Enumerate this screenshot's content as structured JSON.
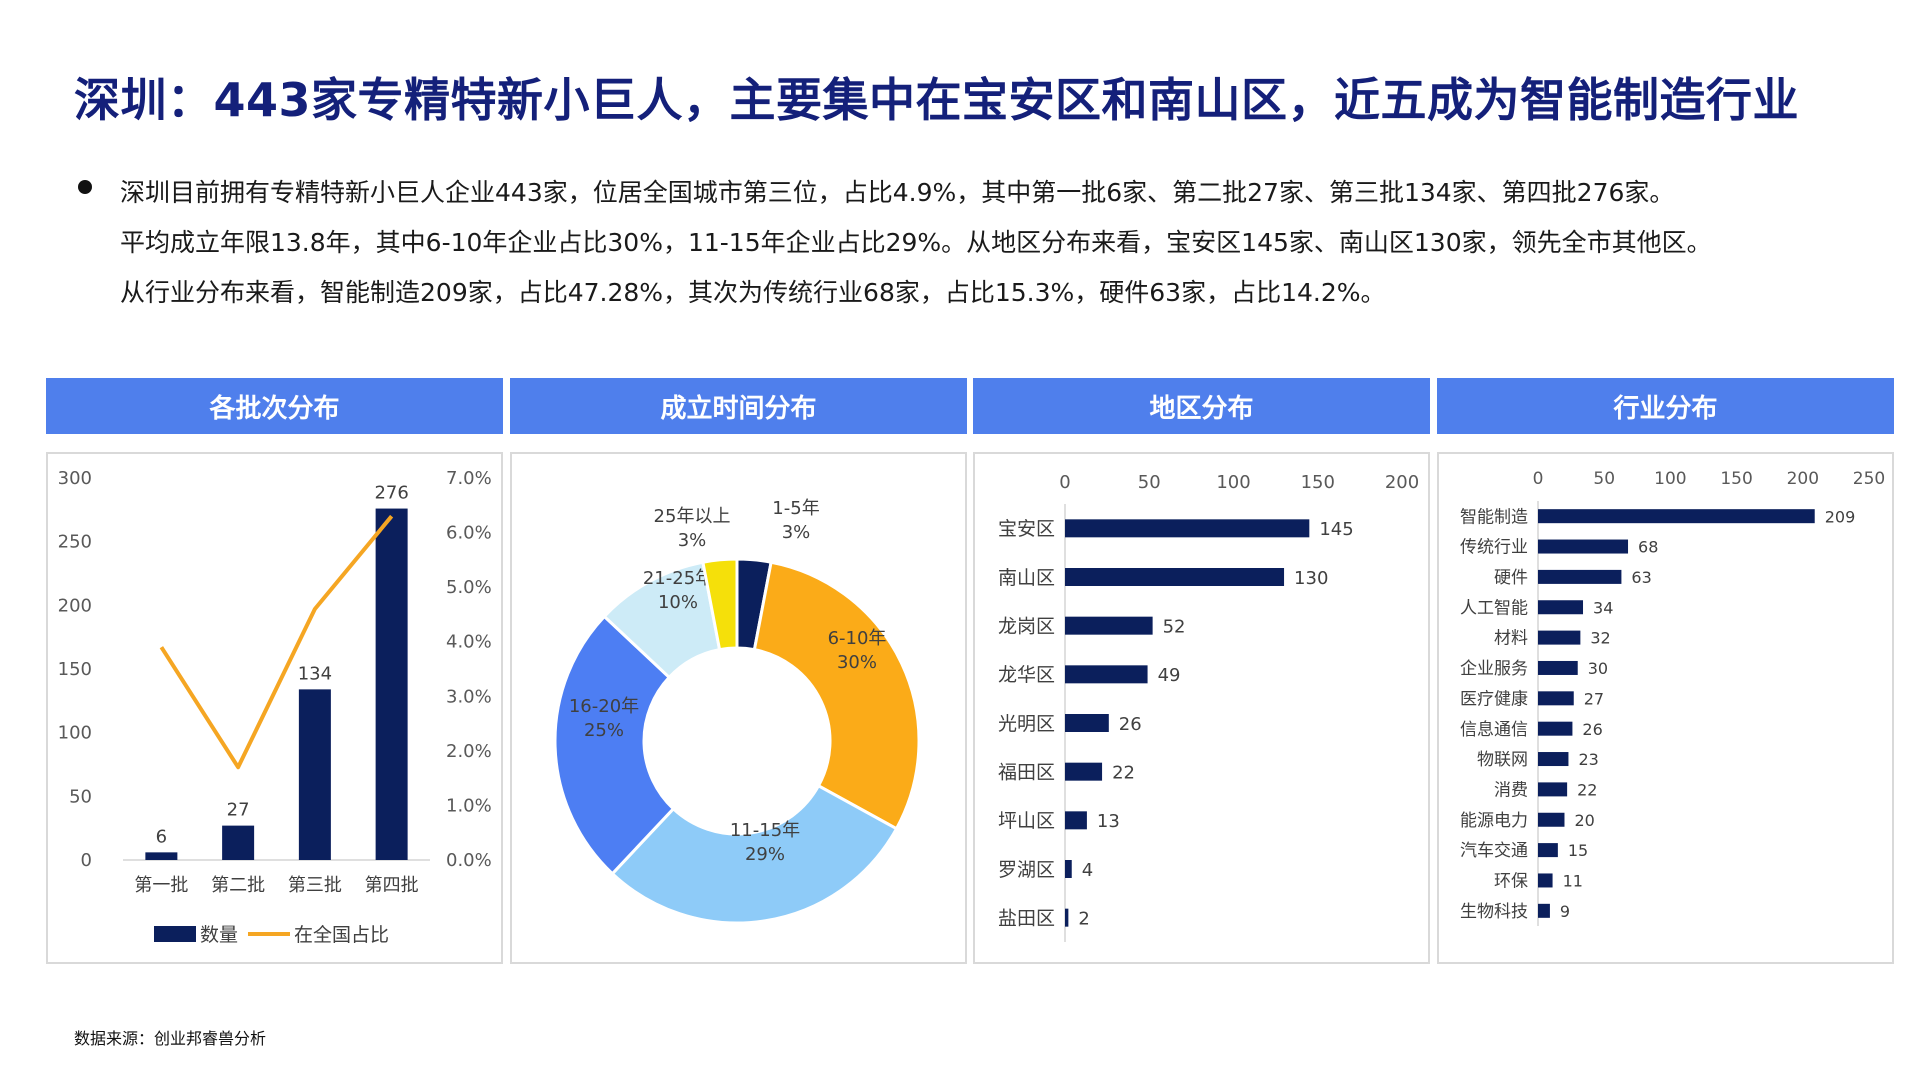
{
  "page": {
    "title": "深圳：443家专精特新小巨人，主要集中在宝安区和南山区，近五成为智能制造行业",
    "bullet_lines": [
      "深圳目前拥有专精特新小巨人企业443家，位居全国城市第三位，占比4.9%，其中第一批6家、第二批27家、第三批134家、第四批276家。",
      "平均成立年限13.8年，其中6-10年企业占比30%，11-15年企业占比29%。从地区分布来看，宝安区145家、南山区130家，领先全市其他区。",
      "从行业分布来看，智能制造209家，占比47.28%，其次为传统行业68家，占比15.3%，硬件63家，占比14.2%。"
    ],
    "source": "数据来源：创业邦睿兽分析",
    "colors": {
      "header_bg": "#4f7fec",
      "navy": "#0b1f5c",
      "title": "#14207a"
    }
  },
  "panels": {
    "batch": {
      "header": "各批次分布"
    },
    "founding": {
      "header": "成立时间分布"
    },
    "region": {
      "header": "地区分布"
    },
    "industry": {
      "header": "行业分布"
    }
  },
  "chart_data": [
    {
      "type": "bar",
      "categories": [
        "第一批",
        "第二批",
        "第三批",
        "第四批"
      ],
      "series": [
        {
          "name": "数量",
          "chart": "bar",
          "axis": "left",
          "values": [
            6,
            27,
            134,
            276
          ],
          "color": "#0b1f5c"
        },
        {
          "name": "在全国占比",
          "chart": "line",
          "axis": "right",
          "values": [
            3.9,
            1.7,
            4.6,
            6.3
          ],
          "color": "#f5a623"
        }
      ],
      "ylim": [
        0,
        300
      ],
      "yticks": [
        0,
        50,
        100,
        150,
        200,
        250,
        300
      ],
      "y2lim": [
        0,
        7
      ],
      "y2ticks": [
        "0.0%",
        "1.0%",
        "2.0%",
        "3.0%",
        "4.0%",
        "5.0%",
        "6.0%",
        "7.0%"
      ],
      "legend": "bottom"
    },
    {
      "type": "pie",
      "donut": true,
      "slices": [
        {
          "label": "1-5年",
          "pct_label": "3%",
          "value": 3,
          "color": "#0b1f5c"
        },
        {
          "label": "6-10年",
          "pct_label": "30%",
          "value": 30,
          "color": "#fbab18"
        },
        {
          "label": "11-15年",
          "pct_label": "29%",
          "value": 29,
          "color": "#8ecbf8"
        },
        {
          "label": "16-20年",
          "pct_label": "25%",
          "value": 25,
          "color": "#4d7ef3"
        },
        {
          "label": "21-25年",
          "pct_label": "10%",
          "value": 10,
          "color": "#cdebf7"
        },
        {
          "label": "25年以上",
          "pct_label": "3%",
          "value": 3,
          "color": "#f5e00a"
        }
      ]
    },
    {
      "type": "bar",
      "orientation": "horizontal",
      "categories": [
        "宝安区",
        "南山区",
        "龙岗区",
        "龙华区",
        "光明区",
        "福田区",
        "坪山区",
        "罗湖区",
        "盐田区"
      ],
      "values": [
        145,
        130,
        52,
        49,
        26,
        22,
        13,
        4,
        2
      ],
      "xlim": [
        0,
        200
      ],
      "xticks": [
        0,
        50,
        100,
        150,
        200
      ],
      "color": "#0b1f5c"
    },
    {
      "type": "bar",
      "orientation": "horizontal",
      "categories": [
        "智能制造",
        "传统行业",
        "硬件",
        "人工智能",
        "材料",
        "企业服务",
        "医疗健康",
        "信息通信",
        "物联网",
        "消费",
        "能源电力",
        "汽车交通",
        "环保",
        "生物科技"
      ],
      "values": [
        209,
        68,
        63,
        34,
        32,
        30,
        27,
        26,
        23,
        22,
        20,
        15,
        11,
        9
      ],
      "xlim": [
        0,
        250
      ],
      "xticks": [
        0,
        50,
        100,
        150,
        200,
        250
      ],
      "color": "#0b1f5c"
    }
  ]
}
